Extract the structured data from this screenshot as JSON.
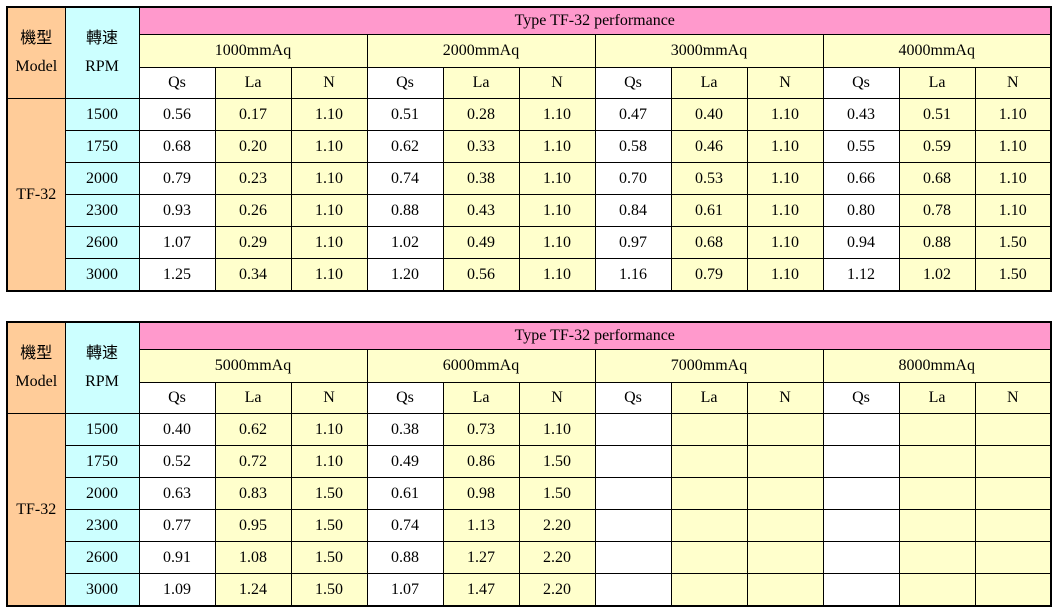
{
  "colors": {
    "model_column_bg": "#FFCC99",
    "rpm_column_bg": "#CCFFFF",
    "title_band_bg": "#FF99CC",
    "value_cell_bg": "#FFFFCC",
    "qs_cell_bg": "#FFFFFF",
    "border": "#000000"
  },
  "left_header": {
    "model_zh": "機型",
    "model_en": "Model",
    "rpm_zh": "轉速",
    "rpm_en": "RPM"
  },
  "model": "TF-32",
  "sub_headers": [
    "Qs",
    "La",
    "N"
  ],
  "tables": [
    {
      "title": "Type TF-32 performance",
      "pressures": [
        "1000mmAq",
        "2000mmAq",
        "3000mmAq",
        "4000mmAq"
      ],
      "rows": [
        {
          "rpm": "1500",
          "values": [
            "0.56",
            "0.17",
            "1.10",
            "0.51",
            "0.28",
            "1.10",
            "0.47",
            "0.40",
            "1.10",
            "0.43",
            "0.51",
            "1.10"
          ]
        },
        {
          "rpm": "1750",
          "values": [
            "0.68",
            "0.20",
            "1.10",
            "0.62",
            "0.33",
            "1.10",
            "0.58",
            "0.46",
            "1.10",
            "0.55",
            "0.59",
            "1.10"
          ]
        },
        {
          "rpm": "2000",
          "values": [
            "0.79",
            "0.23",
            "1.10",
            "0.74",
            "0.38",
            "1.10",
            "0.70",
            "0.53",
            "1.10",
            "0.66",
            "0.68",
            "1.10"
          ]
        },
        {
          "rpm": "2300",
          "values": [
            "0.93",
            "0.26",
            "1.10",
            "0.88",
            "0.43",
            "1.10",
            "0.84",
            "0.61",
            "1.10",
            "0.80",
            "0.78",
            "1.10"
          ]
        },
        {
          "rpm": "2600",
          "values": [
            "1.07",
            "0.29",
            "1.10",
            "1.02",
            "0.49",
            "1.10",
            "0.97",
            "0.68",
            "1.10",
            "0.94",
            "0.88",
            "1.50"
          ]
        },
        {
          "rpm": "3000",
          "values": [
            "1.25",
            "0.34",
            "1.10",
            "1.20",
            "0.56",
            "1.10",
            "1.16",
            "0.79",
            "1.10",
            "1.12",
            "1.02",
            "1.50"
          ]
        }
      ]
    },
    {
      "title": "Type TF-32 performance",
      "pressures": [
        "5000mmAq",
        "6000mmAq",
        "7000mmAq",
        "8000mmAq"
      ],
      "rows": [
        {
          "rpm": "1500",
          "values": [
            "0.40",
            "0.62",
            "1.10",
            "0.38",
            "0.73",
            "1.10",
            "",
            "",
            "",
            "",
            "",
            ""
          ]
        },
        {
          "rpm": "1750",
          "values": [
            "0.52",
            "0.72",
            "1.10",
            "0.49",
            "0.86",
            "1.50",
            "",
            "",
            "",
            "",
            "",
            ""
          ]
        },
        {
          "rpm": "2000",
          "values": [
            "0.63",
            "0.83",
            "1.50",
            "0.61",
            "0.98",
            "1.50",
            "",
            "",
            "",
            "",
            "",
            ""
          ]
        },
        {
          "rpm": "2300",
          "values": [
            "0.77",
            "0.95",
            "1.50",
            "0.74",
            "1.13",
            "2.20",
            "",
            "",
            "",
            "",
            "",
            ""
          ]
        },
        {
          "rpm": "2600",
          "values": [
            "0.91",
            "1.08",
            "1.50",
            "0.88",
            "1.27",
            "2.20",
            "",
            "",
            "",
            "",
            "",
            ""
          ]
        },
        {
          "rpm": "3000",
          "values": [
            "1.09",
            "1.24",
            "1.50",
            "1.07",
            "1.47",
            "2.20",
            "",
            "",
            "",
            "",
            "",
            ""
          ]
        }
      ]
    }
  ]
}
